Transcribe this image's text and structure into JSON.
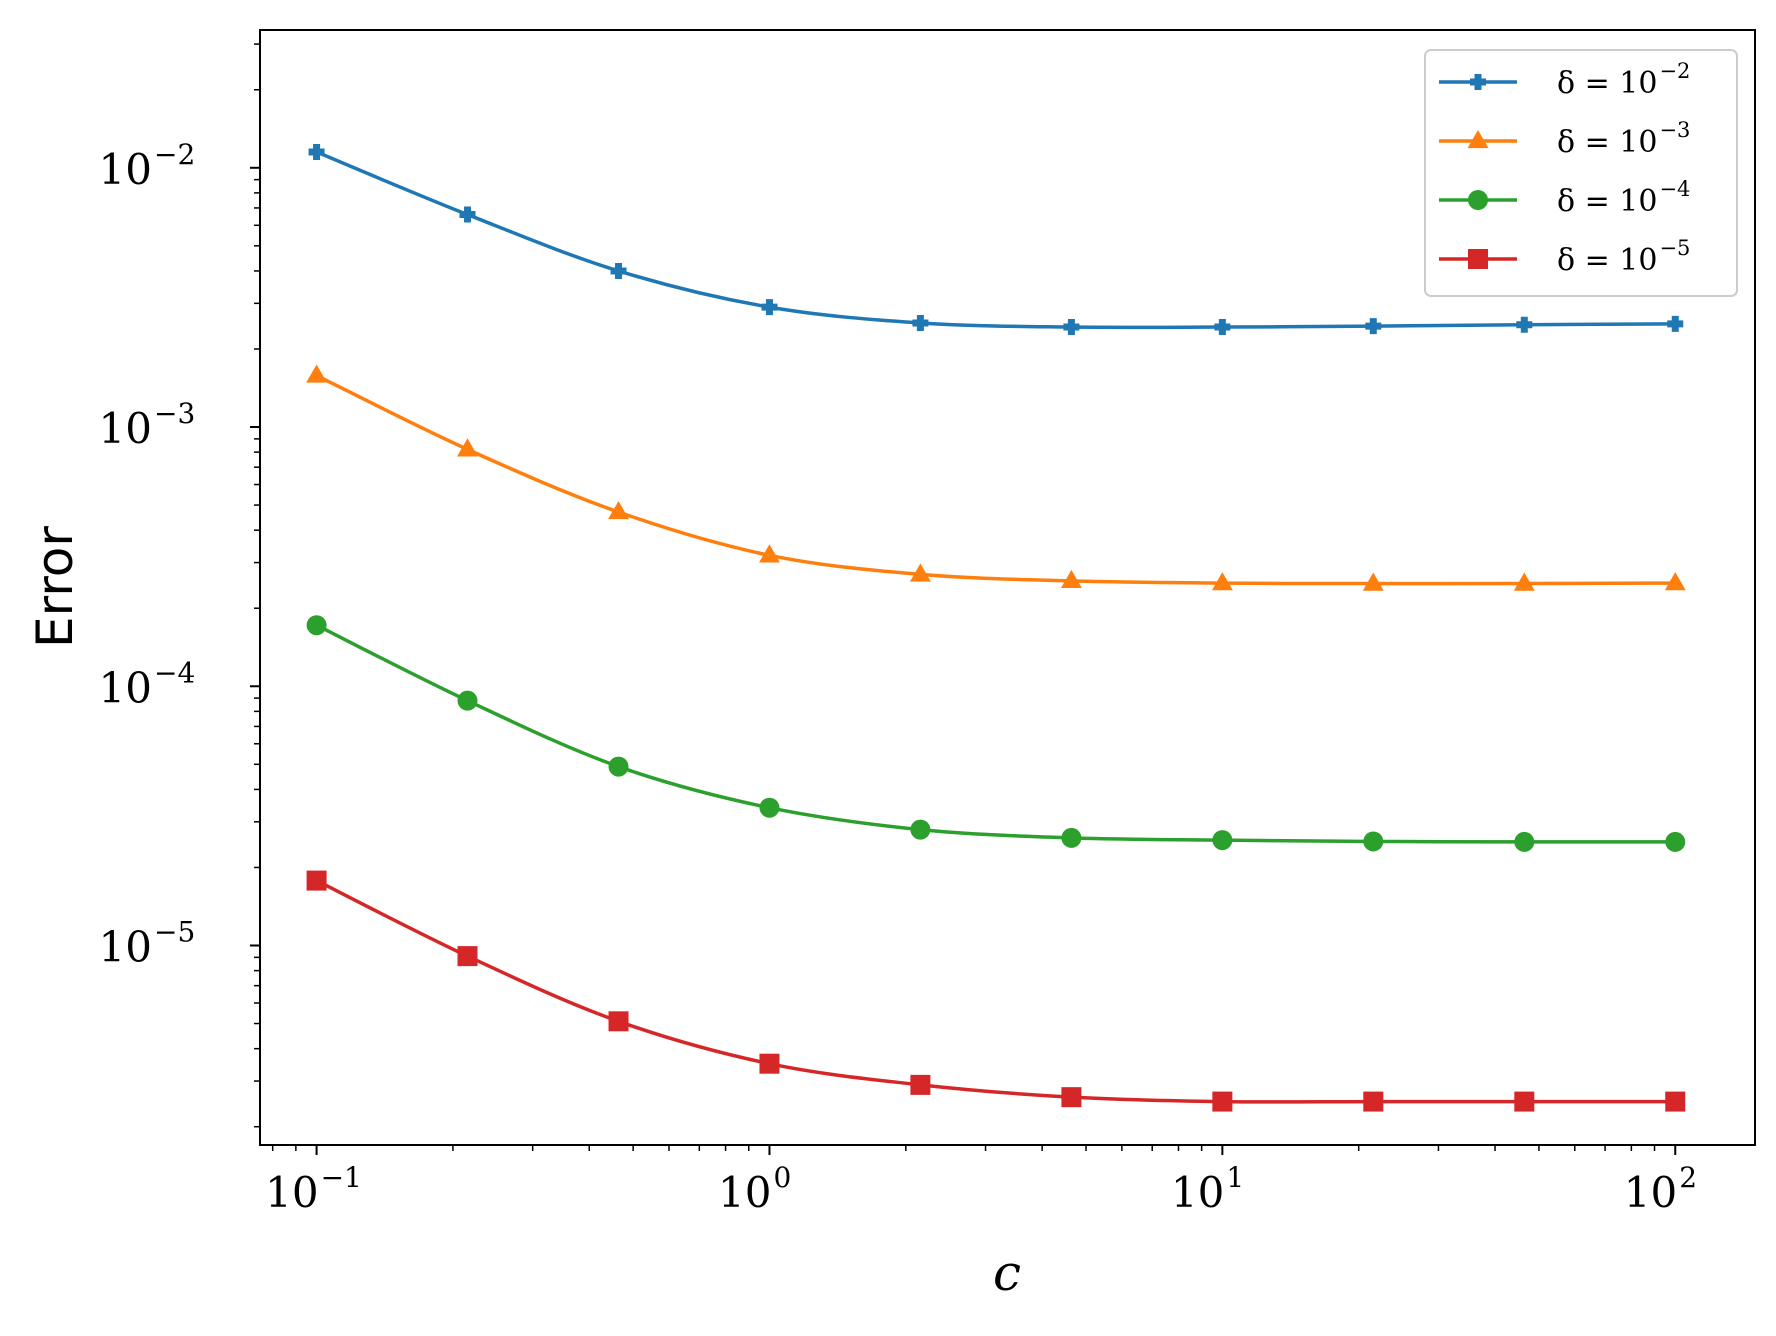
{
  "chart_data": {
    "type": "line",
    "title": "",
    "xlabel": "c",
    "ylabel": "Error",
    "xscale": "log",
    "yscale": "log",
    "xlim": [
      0.075,
      150
    ],
    "ylim": [
      1.7e-06,
      0.034
    ],
    "grid": false,
    "legend_position": "top-right",
    "x": [
      0.1,
      0.2154,
      0.4642,
      1.0,
      2.154,
      4.642,
      10.0,
      21.54,
      46.42,
      100.0
    ],
    "x_ticks": [
      {
        "value": 0.1,
        "base": "10",
        "exp": "−1"
      },
      {
        "value": 1,
        "base": "10",
        "exp": "0"
      },
      {
        "value": 10,
        "base": "10",
        "exp": "1"
      },
      {
        "value": 100,
        "base": "10",
        "exp": "2"
      }
    ],
    "y_ticks": [
      {
        "value": 0.01,
        "base": "10",
        "exp": "−2"
      },
      {
        "value": 0.001,
        "base": "10",
        "exp": "−3"
      },
      {
        "value": 0.0001,
        "base": "10",
        "exp": "−4"
      },
      {
        "value": 1e-05,
        "base": "10",
        "exp": "−5"
      }
    ],
    "series": [
      {
        "name": "δ = 10",
        "exp": "−2",
        "color": "#1f77b4",
        "marker": "plus",
        "values": [
          0.0115,
          0.0066,
          0.004,
          0.0029,
          0.00252,
          0.00243,
          0.00243,
          0.00245,
          0.00248,
          0.0025
        ]
      },
      {
        "name": "δ = 10",
        "exp": "−3",
        "color": "#ff7f0e",
        "marker": "triangle",
        "values": [
          0.00158,
          0.00082,
          0.00047,
          0.00032,
          0.00027,
          0.000255,
          0.00025,
          0.000249,
          0.000249,
          0.00025
        ]
      },
      {
        "name": "δ = 10",
        "exp": "−4",
        "color": "#2ca02c",
        "marker": "circle",
        "values": [
          0.000172,
          8.8e-05,
          4.9e-05,
          3.4e-05,
          2.8e-05,
          2.6e-05,
          2.55e-05,
          2.52e-05,
          2.51e-05,
          2.51e-05
        ]
      },
      {
        "name": "δ = 10",
        "exp": "−5",
        "color": "#d62728",
        "marker": "square",
        "values": [
          1.78e-05,
          9.1e-06,
          5.1e-06,
          3.5e-06,
          2.9e-06,
          2.6e-06,
          2.5e-06,
          2.5e-06,
          2.5e-06,
          2.5e-06
        ]
      }
    ]
  }
}
